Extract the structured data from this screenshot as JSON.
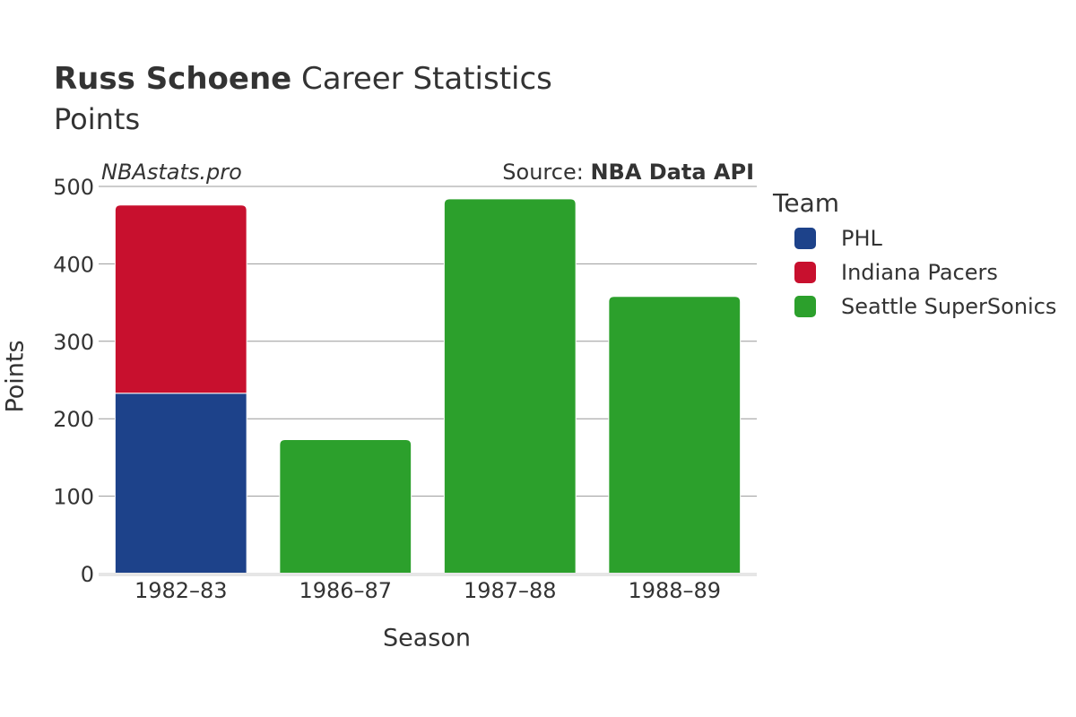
{
  "header": {
    "player_name": "Russ Schoene",
    "title_rest": " Career Statistics",
    "subtitle": "Points",
    "watermark": "NBAstats.pro",
    "source_prefix": "Source: ",
    "source_name": "NBA Data API"
  },
  "legend": {
    "title": "Team",
    "placement": "right"
  },
  "colors": {
    "PHL": "#1d428a",
    "Indiana Pacers": "#c8102e",
    "Seattle SuperSonics": "#2ca02c",
    "grid": "#999999",
    "baseline": "#e6e6e6"
  },
  "chart_data": {
    "type": "bar",
    "stacked": true,
    "title": "Russ Schoene Career Statistics",
    "subtitle": "Points",
    "xlabel": "Season",
    "ylabel": "Points",
    "categories": [
      "1982–83",
      "1986–87",
      "1987–88",
      "1988–89"
    ],
    "ylim": [
      0,
      500
    ],
    "yticks": [
      0,
      100,
      200,
      300,
      400,
      500
    ],
    "grid": true,
    "series": [
      {
        "name": "PHL",
        "values": [
          233,
          0,
          0,
          0
        ]
      },
      {
        "name": "Indiana Pacers",
        "values": [
          243,
          0,
          0,
          0
        ]
      },
      {
        "name": "Seattle SuperSonics",
        "values": [
          0,
          173,
          484,
          358
        ]
      }
    ]
  }
}
